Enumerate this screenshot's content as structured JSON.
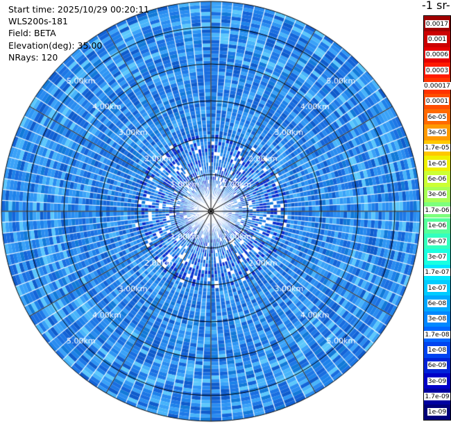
{
  "header": {
    "start_time": "Start time: 2025/10/29 00:20:11",
    "instrument": "WLS200s-181",
    "field": "Field: BETA",
    "elevation": "Elevation(deg): 35.00",
    "nrays": "NRays: 120"
  },
  "colorbar": {
    "unit_label": "-1 sr-",
    "levels": [
      "0.0017",
      "0.001",
      "0.0006",
      "0.0003",
      "0.00017",
      "0.0001",
      "6e-05",
      "3e-05",
      "1.7e-05",
      "1e-05",
      "6e-06",
      "3e-06",
      "1.7e-06",
      "1e-06",
      "6e-07",
      "3e-07",
      "1.7e-07",
      "1e-07",
      "6e-08",
      "3e-08",
      "1.7e-08",
      "1e-08",
      "6e-09",
      "3e-09",
      "1.7e-09",
      "1e-09"
    ],
    "colors": [
      "#a00000",
      "#cc0000",
      "#e60000",
      "#ff1a00",
      "#ff3300",
      "#ff4d00",
      "#ff6a00",
      "#ff9a00",
      "#ffc800",
      "#f0f000",
      "#ccff33",
      "#a8ff55",
      "#7dff7d",
      "#55ff9a",
      "#33ffbe",
      "#1affe0",
      "#00e6ff",
      "#00ccff",
      "#00a8ff",
      "#0088ff",
      "#0066ff",
      "#0044f0",
      "#0022d8",
      "#0000c8",
      "#0000a0",
      "#00007a"
    ]
  },
  "range_labels": [
    "1.00km",
    "2.00km",
    "3.00km",
    "4.00km",
    "5.00km"
  ],
  "chart_data": {
    "type": "heatmap",
    "projection": "polar PPI scan",
    "field": "BETA",
    "elevation_deg": 35.0,
    "n_rays": 120,
    "range_rings_km": [
      1,
      2,
      3,
      4,
      5
    ],
    "max_range_km": 5.7,
    "dominant_value_range": [
      "1e-08",
      "1e-07"
    ],
    "gridline_azimuths_deg": [
      0,
      30,
      60,
      90,
      120,
      150,
      180,
      210,
      240,
      270,
      300,
      330
    ]
  },
  "theme": {
    "grid_color": "#000000",
    "ray_line_color": "#ffffff",
    "label_color": "#ffffff"
  }
}
